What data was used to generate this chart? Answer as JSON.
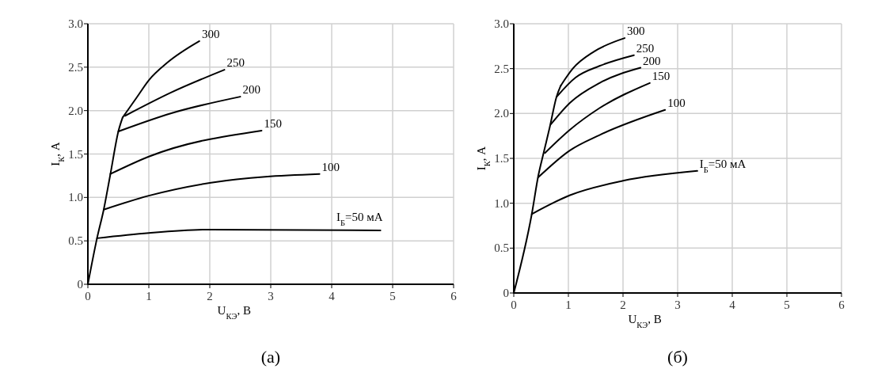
{
  "chart_data": [
    {
      "type": "line",
      "title": "(а)",
      "xlabel": "U$_{КЭ}$, В",
      "ylabel": "I$_{К}$, А",
      "xlim": [
        0,
        6
      ],
      "ylim": [
        0,
        3
      ],
      "xticks": [
        0,
        1,
        2,
        3,
        4,
        5,
        6
      ],
      "yticks": [
        0,
        0.5,
        {
          "value": 1,
          "label": "1.0"
        },
        1.5,
        {
          "value": 2,
          "label": "2.0"
        },
        2.5,
        {
          "value": 3,
          "label": "3.0"
        }
      ],
      "grid": true,
      "line_style": "solid",
      "series": [
        {
          "color": "#000000",
          "x": [
            0,
            0.15,
            0.26,
            0.37,
            0.5,
            0.57
          ],
          "values": [
            0,
            0.53,
            0.86,
            1.27,
            1.76,
            1.92
          ]
        },
        {
          "color": "#000000",
          "x": [
            0.57,
            0.8,
            1,
            1.3,
            1.83
          ],
          "values": [
            1.92,
            2.15,
            2.35,
            2.55,
            2.8
          ]
        },
        {
          "color": "#000000",
          "x": [
            0.61,
            1.37,
            2.24
          ],
          "values": [
            1.94,
            2.21,
            2.47
          ]
        },
        {
          "color": "#000000",
          "x": [
            0.5,
            1.37,
            2.5
          ],
          "values": [
            1.76,
            1.97,
            2.16
          ]
        },
        {
          "color": "#000000",
          "x": [
            0.37,
            1,
            2.85
          ],
          "values": [
            1.27,
            1.47,
            1.77
          ]
        },
        {
          "color": "#000000",
          "x": [
            0.26,
            1,
            2.02,
            3.8
          ],
          "values": [
            0.86,
            1.02,
            1.17,
            1.27
          ]
        },
        {
          "color": "#000000",
          "x": [
            0.15,
            1,
            2.02,
            4.8
          ],
          "values": [
            0.53,
            0.59,
            0.63,
            0.62
          ]
        }
      ],
      "annotations": [
        {
          "text": "300",
          "x": 1.83,
          "y": 2.8
        },
        {
          "text": "250",
          "x": 2.24,
          "y": 2.47
        },
        {
          "text": "200",
          "x": 2.5,
          "y": 2.16
        },
        {
          "text": "150",
          "x": 2.85,
          "y": 1.77
        },
        {
          "text": "100",
          "x": 3.8,
          "y": 1.27
        },
        {
          "text": "I$_{Б}$=50 мА",
          "x": 4.8,
          "y": 0.62
        }
      ]
    },
    {
      "type": "line",
      "title": "(б)",
      "xlabel": "U$_{КЭ}$, В",
      "ylabel": "I$_{К}$, А",
      "xlim": [
        0,
        6
      ],
      "ylim": [
        0,
        3
      ],
      "xticks": [
        0,
        1,
        2,
        3,
        4,
        5,
        6
      ],
      "yticks": [
        0,
        0.5,
        {
          "value": 1,
          "label": "1.0"
        },
        1.5,
        {
          "value": 2,
          "label": "2.0"
        },
        2.5,
        {
          "value": 3,
          "label": "3.0"
        }
      ],
      "grid": true,
      "line_style": "solid",
      "series": [
        {
          "color": "#000000",
          "x": [
            0,
            0.33,
            0.45,
            0.55,
            0.66,
            0.78,
            0.86
          ],
          "values": [
            0,
            0.88,
            1.31,
            1.57,
            1.85,
            2.18,
            2.31
          ]
        },
        {
          "color": "#000000",
          "x": [
            0.86,
            1.08,
            1.47,
            2.03
          ],
          "values": [
            2.31,
            2.5,
            2.69,
            2.84
          ]
        },
        {
          "color": "#000000",
          "x": [
            0.79,
            1.13,
            1.57,
            2.2
          ],
          "values": [
            2.19,
            2.4,
            2.53,
            2.65
          ]
        },
        {
          "color": "#000000",
          "x": [
            0.68,
            1.03,
            1.57,
            2.32
          ],
          "values": [
            1.88,
            2.12,
            2.34,
            2.51
          ]
        },
        {
          "color": "#000000",
          "x": [
            0.57,
            1.03,
            1.57,
            2.49
          ],
          "values": [
            1.56,
            1.82,
            2.06,
            2.34
          ]
        },
        {
          "color": "#000000",
          "x": [
            0.45,
            1.03,
            1.57,
            2.77
          ],
          "values": [
            1.29,
            1.59,
            1.76,
            2.04
          ]
        },
        {
          "color": "#000000",
          "x": [
            0.33,
            1.03,
            2,
            3.36
          ],
          "values": [
            0.88,
            1.09,
            1.25,
            1.36
          ]
        }
      ],
      "annotations": [
        {
          "text": "300",
          "x": 2.03,
          "y": 2.84
        },
        {
          "text": "250",
          "x": 2.2,
          "y": 2.65
        },
        {
          "text": "200",
          "x": 2.32,
          "y": 2.51
        },
        {
          "text": "150",
          "x": 2.49,
          "y": 2.34
        },
        {
          "text": "100",
          "x": 2.77,
          "y": 2.04
        },
        {
          "text": "I$_{Б}$=50 мА",
          "x": 3.36,
          "y": 1.36
        }
      ]
    }
  ]
}
